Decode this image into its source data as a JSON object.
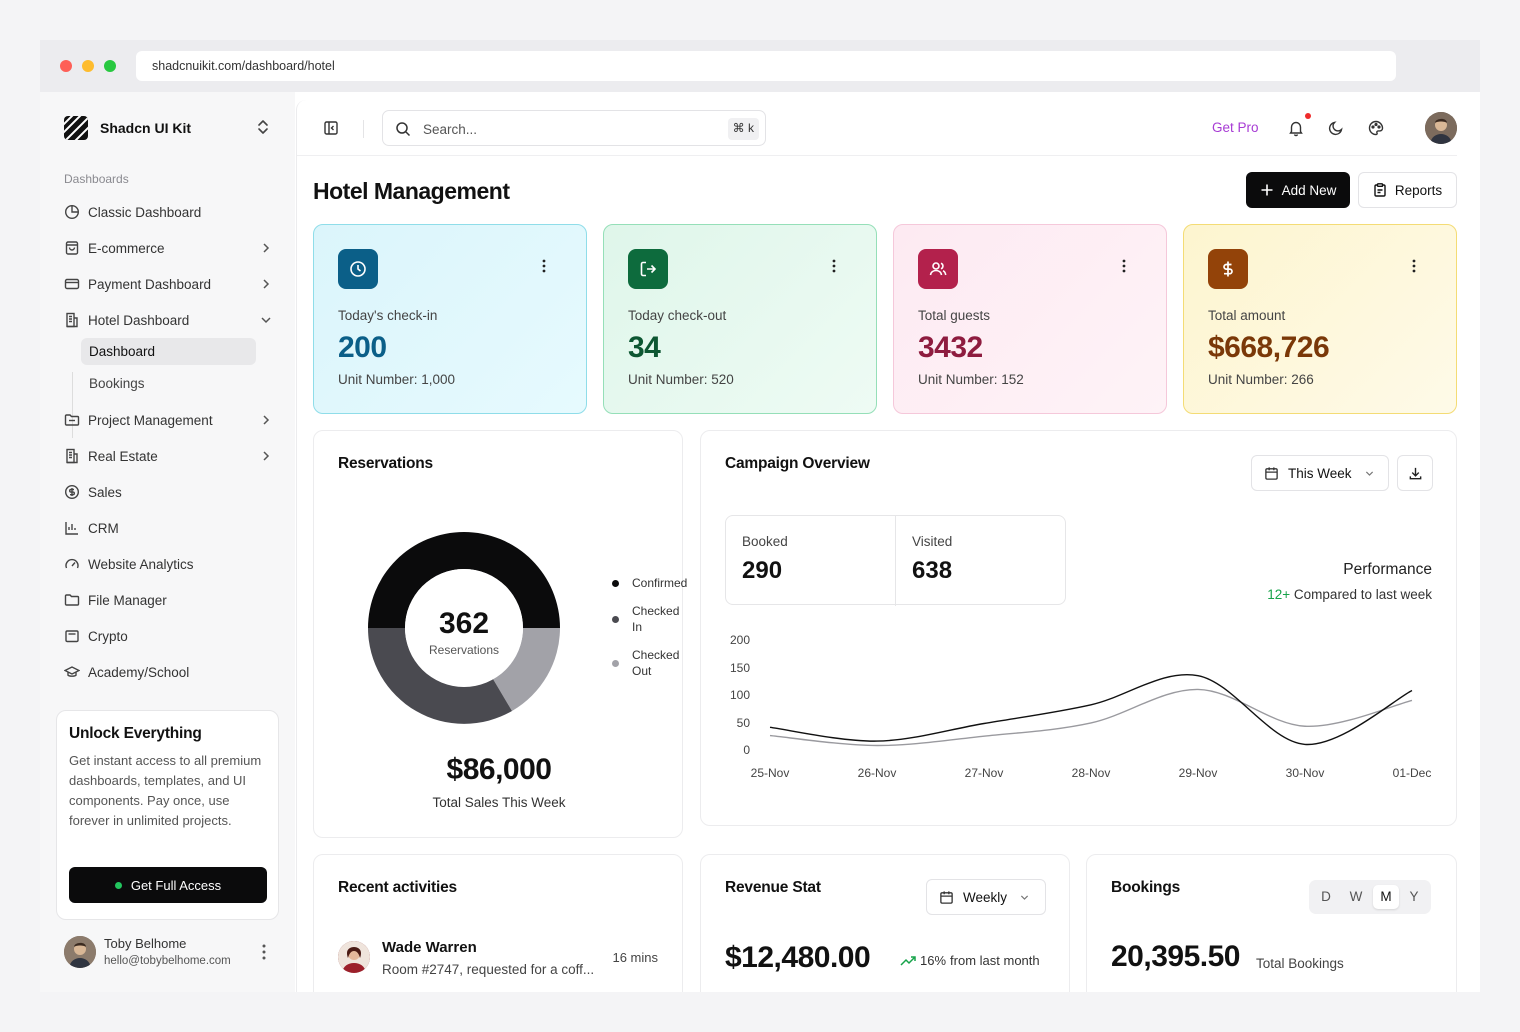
{
  "browser": {
    "url": "shadcnuikit.com/dashboard/hotel"
  },
  "sidebar": {
    "brand": "Shadcn UI Kit",
    "section_label": "Dashboards",
    "items": [
      {
        "label": "Classic Dashboard",
        "icon": "pie-chart-icon"
      },
      {
        "label": "E-commerce",
        "icon": "shopping-bag-icon"
      },
      {
        "label": "Payment Dashboard",
        "icon": "credit-card-icon"
      },
      {
        "label": "Hotel Dashboard",
        "icon": "building-icon"
      },
      {
        "label": "Project Management",
        "icon": "folder-icon"
      },
      {
        "label": "Real Estate",
        "icon": "building-icon"
      },
      {
        "label": "Sales",
        "icon": "dollar-circle-icon"
      },
      {
        "label": "CRM",
        "icon": "chart-bars-icon"
      },
      {
        "label": "Website Analytics",
        "icon": "gauge-icon"
      },
      {
        "label": "File Manager",
        "icon": "folder-icon"
      },
      {
        "label": "Crypto",
        "icon": "wallet-icon"
      },
      {
        "label": "Academy/School",
        "icon": "graduation-cap-icon"
      }
    ],
    "sub_items": [
      {
        "label": "Dashboard"
      },
      {
        "label": "Bookings"
      }
    ],
    "promo": {
      "title": "Unlock Everything",
      "text": "Get instant access to all premium dashboards, templates, and UI components. Pay once, use forever in unlimited projects.",
      "button": "Get Full Access"
    },
    "user": {
      "name": "Toby Belhome",
      "email": "hello@tobybelhome.com"
    }
  },
  "topbar": {
    "search_placeholder": "Search...",
    "shortcut": "⌘ k",
    "get_pro": "Get Pro"
  },
  "page": {
    "title": "Hotel Management",
    "add_new": "Add New",
    "reports": "Reports"
  },
  "stats": [
    {
      "label": "Today's check-in",
      "value": "200",
      "sub": "Unit Number: 1,000",
      "color": "#0b5f88"
    },
    {
      "label": "Today check-out",
      "value": "34",
      "sub": "Unit Number: 520",
      "color": "#0d6b3d"
    },
    {
      "label": "Total guests",
      "value": "3432",
      "sub": "Unit Number: 152",
      "color": "#b3214c"
    },
    {
      "label": "Total amount",
      "value": "$668,726",
      "sub": "Unit Number: 266",
      "color": "#934309"
    }
  ],
  "reservations": {
    "title": "Reservations",
    "center_value": "362",
    "center_label": "Reservations",
    "total": "$86,000",
    "total_label": "Total Sales This Week",
    "legend": [
      "Confirmed",
      "Checked In",
      "Checked Out"
    ],
    "colors": [
      "#0b0b0c",
      "#4a4a50",
      "#a2a2a8"
    ]
  },
  "campaign": {
    "title": "Campaign Overview",
    "filter": "This Week",
    "booked_label": "Booked",
    "booked_value": "290",
    "visited_label": "Visited",
    "visited_value": "638",
    "performance_label": "Performance",
    "compare_value": "12+",
    "compare_text": "Compared to last week"
  },
  "chart_data": {
    "type": "line",
    "categories": [
      "25-Nov",
      "26-Nov",
      "27-Nov",
      "28-Nov",
      "29-Nov",
      "30-Nov",
      "01-Dec"
    ],
    "yticks": [
      200,
      150,
      100,
      50,
      0
    ],
    "ylim": [
      0,
      200
    ],
    "series": [
      {
        "values": [
          43,
          18,
          50,
          84,
          137,
          12,
          110
        ],
        "color": "#111111"
      },
      {
        "values": [
          28,
          10,
          27,
          51,
          112,
          45,
          92
        ],
        "color": "#9a9a9f"
      }
    ]
  },
  "activities": {
    "title": "Recent activities",
    "items": [
      {
        "name": "Wade Warren",
        "text": "Room #2747, requested for a coff...",
        "time": "16 mins"
      }
    ]
  },
  "revenue": {
    "title": "Revenue Stat",
    "filter": "Weekly",
    "amount": "$12,480.00",
    "change": "16%",
    "change_text": "from last month"
  },
  "bookings": {
    "title": "Bookings",
    "segments": [
      "D",
      "W",
      "M",
      "Y"
    ],
    "active_segment": "M",
    "amount": "20,395.50",
    "label": "Total Bookings"
  }
}
